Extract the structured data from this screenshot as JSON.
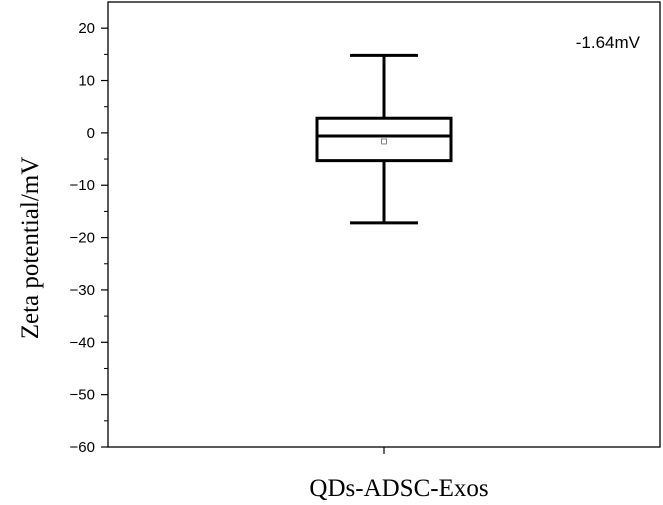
{
  "chart_data": {
    "type": "box",
    "ylabel": "Zeta potential/mV",
    "ylim": [
      -60,
      25
    ],
    "yticks": [
      20,
      10,
      0,
      -10,
      -20,
      -30,
      -40,
      -50,
      -60
    ],
    "ytick_labels": [
      "20",
      "10",
      "0",
      "−10",
      "−20",
      "−30",
      "−40",
      "−50",
      "−60"
    ],
    "categories": [
      "QDs-ADSC-Exos"
    ],
    "box": {
      "whisker_high": 14.8,
      "q3": 2.8,
      "median": -0.6,
      "q1": -5.3,
      "whisker_low": -17.2,
      "mean": -1.64
    },
    "annotation": "-1.64mV",
    "grid": false,
    "legend": "none",
    "colors": {
      "line": "#000000",
      "background": "#ffffff"
    }
  }
}
